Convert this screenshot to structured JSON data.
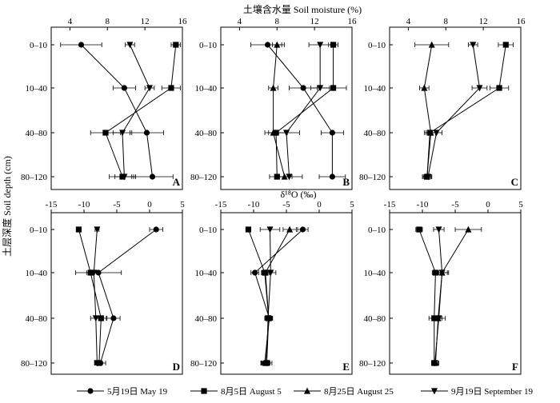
{
  "figure": {
    "top_axis_label": "土壤含水量 Soil moisture (%)",
    "middle_axis_label": "δ¹⁸O (‰)",
    "y_axis_label": "土层深度 Soil depth (cm)"
  },
  "legend": [
    {
      "label": "5月19日 May 19",
      "marker": "circle"
    },
    {
      "label": "8月5日 August 5",
      "marker": "square"
    },
    {
      "label": "8月25日 August 25",
      "marker": "triangle-up"
    },
    {
      "label": "9月19日 September 19",
      "marker": "triangle-down"
    }
  ],
  "chart_data": [
    {
      "panel": "A",
      "type": "line",
      "xlabel": "土壤含水量 Soil moisture (%)",
      "xlim": [
        2,
        16
      ],
      "xticks": [
        4,
        8,
        12,
        16
      ],
      "ylabel": "土层深度 Soil depth (cm)",
      "categories": [
        "0–10",
        "10–40",
        "40–80",
        "80–120"
      ],
      "series": [
        {
          "date": "May 19",
          "marker": "circle",
          "values": [
            5.2,
            9.8,
            12.2,
            12.8
          ],
          "errors": [
            2.2,
            1.2,
            1.8,
            2.2
          ]
        },
        {
          "date": "August 5",
          "marker": "square",
          "values": [
            15.3,
            14.8,
            7.8,
            9.6
          ],
          "errors": [
            0.5,
            1.0,
            1.6,
            1.4
          ]
        },
        {
          "date": "August 25",
          "marker": "triangle-up",
          "values": [
            null,
            null,
            null,
            null
          ],
          "errors": [
            null,
            null,
            null,
            null
          ]
        },
        {
          "date": "September 19",
          "marker": "triangle-down",
          "values": [
            10.4,
            12.5,
            9.6,
            9.8
          ],
          "errors": [
            0.5,
            0.5,
            1.0,
            1.0
          ]
        }
      ]
    },
    {
      "panel": "B",
      "type": "line",
      "xlabel": "土壤含水量 Soil moisture (%)",
      "xlim": [
        2,
        16
      ],
      "xticks": [
        4,
        8,
        12,
        16
      ],
      "categories": [
        "0–10",
        "10–40",
        "40–80",
        "80–120"
      ],
      "series": [
        {
          "date": "May 19",
          "marker": "circle",
          "values": [
            7.0,
            10.8,
            13.9,
            13.9
          ],
          "errors": [
            1.8,
            1.5,
            1.2,
            1.4
          ]
        },
        {
          "date": "August 5",
          "marker": "square",
          "values": [
            14.0,
            14.0,
            7.9,
            8.0
          ],
          "errors": [
            0.5,
            1.4,
            1.2,
            0.8
          ]
        },
        {
          "date": "August 25",
          "marker": "triangle-up",
          "values": [
            8.0,
            7.6,
            7.6,
            8.8
          ],
          "errors": [
            0.5,
            0.5,
            0.5,
            0.8
          ]
        },
        {
          "date": "September 19",
          "marker": "triangle-down",
          "values": [
            12.6,
            12.6,
            9.0,
            9.3
          ],
          "errors": [
            1.2,
            1.0,
            1.4,
            1.4
          ]
        }
      ]
    },
    {
      "panel": "C",
      "type": "line",
      "xlabel": "土壤含水量 Soil moisture (%)",
      "xlim": [
        2,
        16
      ],
      "xticks": [
        4,
        8,
        12,
        16
      ],
      "categories": [
        "0–10",
        "10–40",
        "40–80",
        "80–120"
      ],
      "series": [
        {
          "date": "May 19",
          "marker": "circle",
          "values": [
            null,
            null,
            null,
            null
          ],
          "errors": [
            null,
            null,
            null,
            null
          ]
        },
        {
          "date": "August 5",
          "marker": "square",
          "values": [
            14.4,
            13.7,
            6.3,
            6.0
          ],
          "errors": [
            0.8,
            1.0,
            0.6,
            0.5
          ]
        },
        {
          "date": "August 25",
          "marker": "triangle-up",
          "values": [
            6.5,
            5.7,
            6.4,
            6.0
          ],
          "errors": [
            1.8,
            0.5,
            0.5,
            0.4
          ]
        },
        {
          "date": "September 19",
          "marker": "triangle-down",
          "values": [
            10.9,
            11.6,
            7.0,
            6.1
          ],
          "errors": [
            0.5,
            0.8,
            0.6,
            0.4
          ]
        }
      ]
    },
    {
      "panel": "D",
      "type": "line",
      "xlabel": "δ¹⁸O (‰)",
      "xlim": [
        -15,
        5
      ],
      "xticks": [
        -15,
        -10,
        -5,
        0,
        5
      ],
      "categories": [
        "0–10",
        "10–40",
        "40–80",
        "80–120"
      ],
      "series": [
        {
          "date": "May 19",
          "marker": "circle",
          "values": [
            1.0,
            -7.8,
            -5.5,
            -7.5
          ],
          "errors": [
            1.0,
            3.5,
            1.0,
            0.8
          ]
        },
        {
          "date": "August 5",
          "marker": "square",
          "values": [
            -10.8,
            -9.0,
            -7.4,
            -7.7
          ],
          "errors": [
            0.3,
            0.6,
            0.8,
            0.5
          ]
        },
        {
          "date": "August 25",
          "marker": "triangle-up",
          "values": [
            null,
            null,
            null,
            null
          ],
          "errors": [
            null,
            null,
            null,
            null
          ]
        },
        {
          "date": "September 19",
          "marker": "triangle-down",
          "values": [
            -8.0,
            -8.5,
            -8.2,
            -8.0
          ],
          "errors": [
            0.3,
            0.6,
            0.8,
            0.4
          ]
        }
      ]
    },
    {
      "panel": "E",
      "type": "line",
      "xlabel": "δ¹⁸O (‰)",
      "xlim": [
        -15,
        5
      ],
      "xticks": [
        -15,
        -10,
        -5,
        0,
        5
      ],
      "categories": [
        "0–10",
        "10–40",
        "40–80",
        "80–120"
      ],
      "series": [
        {
          "date": "May 19",
          "marker": "circle",
          "values": [
            -2.5,
            -9.8,
            -7.6,
            -8.3
          ],
          "errors": [
            0.8,
            0.6,
            0.5,
            0.6
          ]
        },
        {
          "date": "August 5",
          "marker": "square",
          "values": [
            -10.8,
            -8.3,
            -7.7,
            -8.0
          ],
          "errors": [
            0.3,
            0.5,
            0.5,
            0.8
          ]
        },
        {
          "date": "August 25",
          "marker": "triangle-up",
          "values": [
            -4.5,
            -8.2,
            -7.7,
            -8.2
          ],
          "errors": [
            1.0,
            0.6,
            0.5,
            0.5
          ]
        },
        {
          "date": "September 19",
          "marker": "triangle-down",
          "values": [
            -7.5,
            -7.4,
            -7.8,
            -8.0
          ],
          "errors": [
            1.5,
            0.8,
            0.5,
            0.5
          ]
        }
      ]
    },
    {
      "panel": "F",
      "type": "line",
      "xlabel": "δ¹⁸O (‰)",
      "xlim": [
        -15,
        5
      ],
      "xticks": [
        -15,
        -10,
        -5,
        0,
        5
      ],
      "categories": [
        "0–10",
        "10–40",
        "40–80",
        "80–120"
      ],
      "series": [
        {
          "date": "May 19",
          "marker": "circle",
          "values": [
            null,
            null,
            null,
            null
          ],
          "errors": [
            null,
            null,
            null,
            null
          ]
        },
        {
          "date": "August 5",
          "marker": "square",
          "values": [
            -10.5,
            -8.0,
            -8.2,
            -8.2
          ],
          "errors": [
            0.5,
            0.5,
            0.8,
            0.4
          ]
        },
        {
          "date": "August 25",
          "marker": "triangle-up",
          "values": [
            -3.0,
            -7.0,
            -7.6,
            -8.0
          ],
          "errors": [
            2.0,
            0.8,
            0.6,
            0.5
          ]
        },
        {
          "date": "September 19",
          "marker": "triangle-down",
          "values": [
            -7.5,
            -7.0,
            -7.5,
            -8.1
          ],
          "errors": [
            0.8,
            1.0,
            1.0,
            0.5
          ]
        }
      ]
    }
  ]
}
